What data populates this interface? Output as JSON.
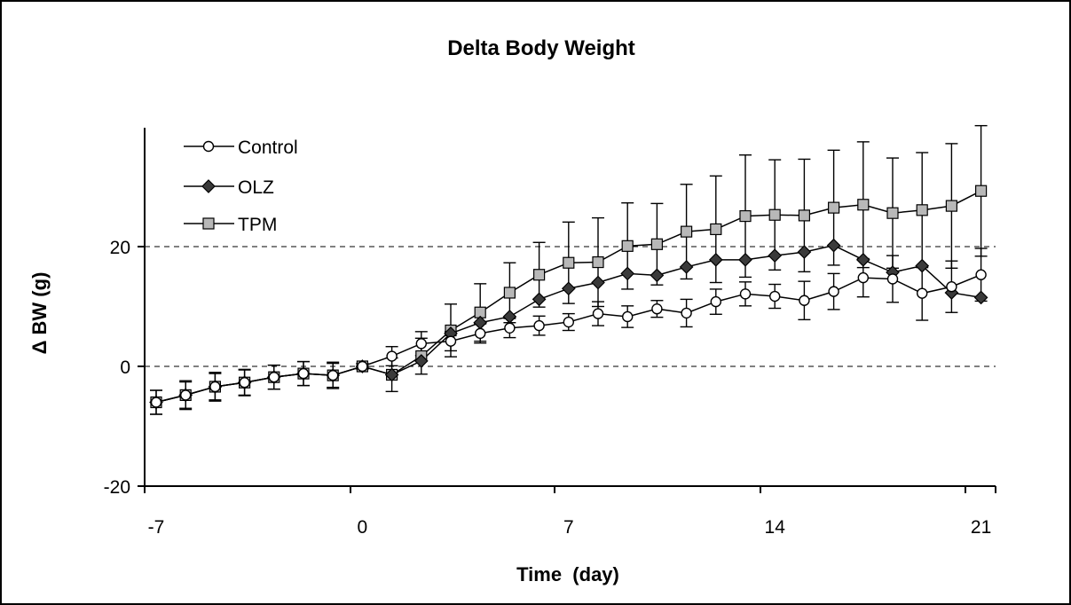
{
  "chart_data": {
    "type": "line",
    "title": "Delta Body Weight",
    "xlabel": "Time  (day)",
    "ylabel": "Δ BW (g)",
    "xlim": [
      -7.3,
      21.7
    ],
    "ylim": [
      -20,
      40
    ],
    "xticks": [
      -7,
      0,
      7,
      14,
      21
    ],
    "xtick_labels": [
      "-7",
      "0",
      "7",
      "14",
      "21"
    ],
    "yticks": [
      -20,
      0,
      20
    ],
    "ytick_labels": [
      "-20",
      "0",
      "20"
    ],
    "reference_lines": [
      0,
      20
    ],
    "legend_position": "top-left",
    "x": [
      -7,
      -6,
      -5,
      -4,
      -3,
      -2,
      -1,
      0,
      1,
      2,
      3,
      4,
      5,
      6,
      7,
      8,
      9,
      10,
      11,
      12,
      13,
      14,
      15,
      16,
      17,
      18,
      19,
      20,
      21
    ],
    "series": [
      {
        "name": "Control",
        "marker": "circle",
        "fill": "#ffffff",
        "values": [
          -6.0,
          -4.8,
          -3.4,
          -2.7,
          -1.8,
          -1.2,
          -1.5,
          0.0,
          1.7,
          3.8,
          4.2,
          5.5,
          6.4,
          6.8,
          7.4,
          8.8,
          8.3,
          9.6,
          8.9,
          10.8,
          12.1,
          11.7,
          11.0,
          12.5,
          14.8,
          14.6,
          12.2,
          13.3,
          15.3
        ],
        "error": [
          2.0,
          2.2,
          2.2,
          2.1,
          2.0,
          2.0,
          2.0,
          0.4,
          1.6,
          2.0,
          1.6,
          1.6,
          1.6,
          1.6,
          1.4,
          2.0,
          1.8,
          1.4,
          2.3,
          2.1,
          2.0,
          2.0,
          3.2,
          3.0,
          3.2,
          3.9,
          4.5,
          4.3,
          4.4
        ]
      },
      {
        "name": "OLZ",
        "marker": "diamond",
        "fill": "#3a3a3a",
        "values": [
          -6.0,
          -4.8,
          -3.4,
          -2.7,
          -1.8,
          -1.2,
          -1.5,
          0.0,
          -1.4,
          0.9,
          5.5,
          7.3,
          8.3,
          11.2,
          13.0,
          14.0,
          15.5,
          15.2,
          16.6,
          17.8,
          17.8,
          18.5,
          19.1,
          20.2,
          17.8,
          15.7,
          16.8,
          12.3,
          11.5
        ]
      },
      {
        "name": "TPM",
        "marker": "square",
        "fill": "#b8b8b8",
        "values": [
          -6.0,
          -4.8,
          -3.4,
          -2.7,
          -1.8,
          -1.2,
          -1.5,
          0.0,
          -1.4,
          1.7,
          6.0,
          9.0,
          12.3,
          15.3,
          17.3,
          17.4,
          20.1,
          20.4,
          22.5,
          22.9,
          25.1,
          25.3,
          25.2,
          26.5,
          27.0,
          25.6,
          26.1,
          26.8,
          29.3
        ],
        "error": [
          2.0,
          2.4,
          2.4,
          2.2,
          2.0,
          2.0,
          2.2,
          0.5,
          2.8,
          3.0,
          4.4,
          4.8,
          5.0,
          5.4,
          6.8,
          7.4,
          7.2,
          6.8,
          7.9,
          8.9,
          10.2,
          9.2,
          9.4,
          9.6,
          10.5,
          9.2,
          9.6,
          10.4,
          10.9
        ]
      }
    ]
  }
}
